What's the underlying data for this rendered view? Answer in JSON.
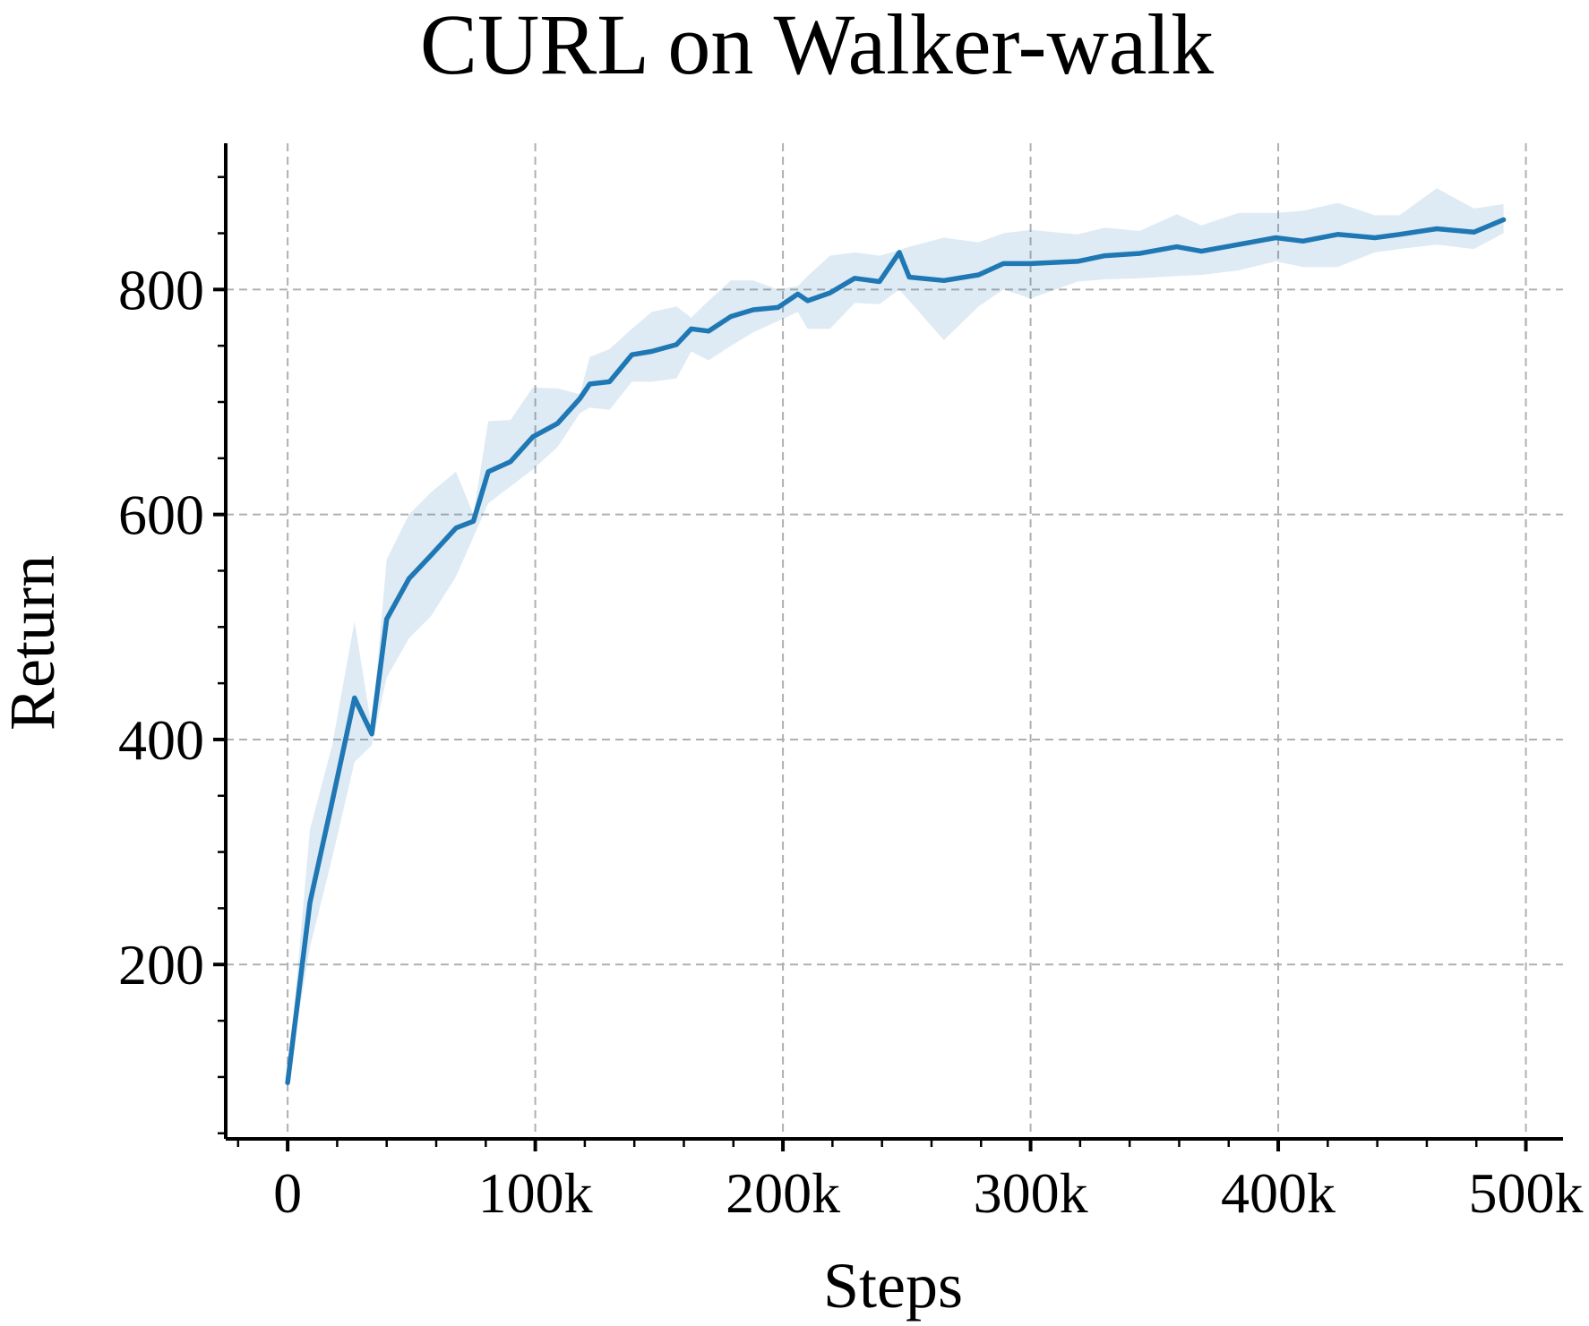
{
  "chart_data": {
    "type": "line",
    "title": "CURL on Walker-walk",
    "xlabel": "Steps",
    "ylabel": "Return",
    "xlim": [
      -25000,
      515000
    ],
    "ylim": [
      45,
      930
    ],
    "xticks": [
      0,
      100000,
      200000,
      300000,
      400000,
      500000
    ],
    "xtick_labels": [
      "0",
      "100k",
      "200k",
      "300k",
      "400k",
      "500k"
    ],
    "yticks": [
      200,
      400,
      600,
      800
    ],
    "ytick_labels": [
      "200",
      "400",
      "600",
      "800"
    ],
    "grid": true,
    "colors": {
      "line": "#1f77b4",
      "band": "#1f77b4"
    },
    "series": [
      {
        "x": [
          0,
          9000,
          18000,
          27000,
          34000,
          40000,
          49000,
          58000,
          68000,
          75000,
          81000,
          90000,
          99000,
          109000,
          118000,
          122000,
          130000,
          139000,
          147000,
          157000,
          163000,
          170000,
          179000,
          188000,
          198000,
          206000,
          210000,
          219000,
          229000,
          239000,
          247000,
          251000,
          265000,
          279000,
          289000,
          300000,
          319000,
          330000,
          344000,
          359000,
          369000,
          384000,
          399000,
          410000,
          424000,
          439000,
          449000,
          464000,
          479000,
          491000
        ],
        "y": [
          95,
          255,
          345,
          437,
          405,
          507,
          543,
          564,
          588,
          594,
          638,
          647,
          669,
          681,
          703,
          716,
          718,
          742,
          745,
          751,
          765,
          763,
          776,
          782,
          784,
          796,
          790,
          797,
          810,
          807,
          833,
          811,
          808,
          813,
          823,
          823,
          825,
          830,
          832,
          838,
          834,
          840,
          846,
          843,
          849,
          846,
          849,
          854,
          851,
          862
        ],
        "lower": [
          95,
          215,
          295,
          380,
          395,
          455,
          490,
          510,
          545,
          580,
          610,
          625,
          640,
          660,
          690,
          695,
          693,
          718,
          718,
          721,
          745,
          737,
          750,
          762,
          772,
          780,
          765,
          765,
          788,
          787,
          800,
          790,
          755,
          785,
          800,
          792,
          807,
          809,
          810,
          812,
          813,
          817,
          825,
          820,
          820,
          833,
          836,
          840,
          836,
          850
        ],
        "upper": [
          95,
          320,
          395,
          505,
          410,
          560,
          600,
          620,
          638,
          600,
          683,
          684,
          713,
          712,
          707,
          740,
          747,
          765,
          780,
          785,
          775,
          790,
          808,
          808,
          800,
          803,
          812,
          830,
          833,
          830,
          835,
          838,
          846,
          842,
          850,
          853,
          849,
          855,
          852,
          867,
          857,
          868,
          868,
          870,
          877,
          866,
          866,
          890,
          872,
          876
        ]
      }
    ]
  }
}
